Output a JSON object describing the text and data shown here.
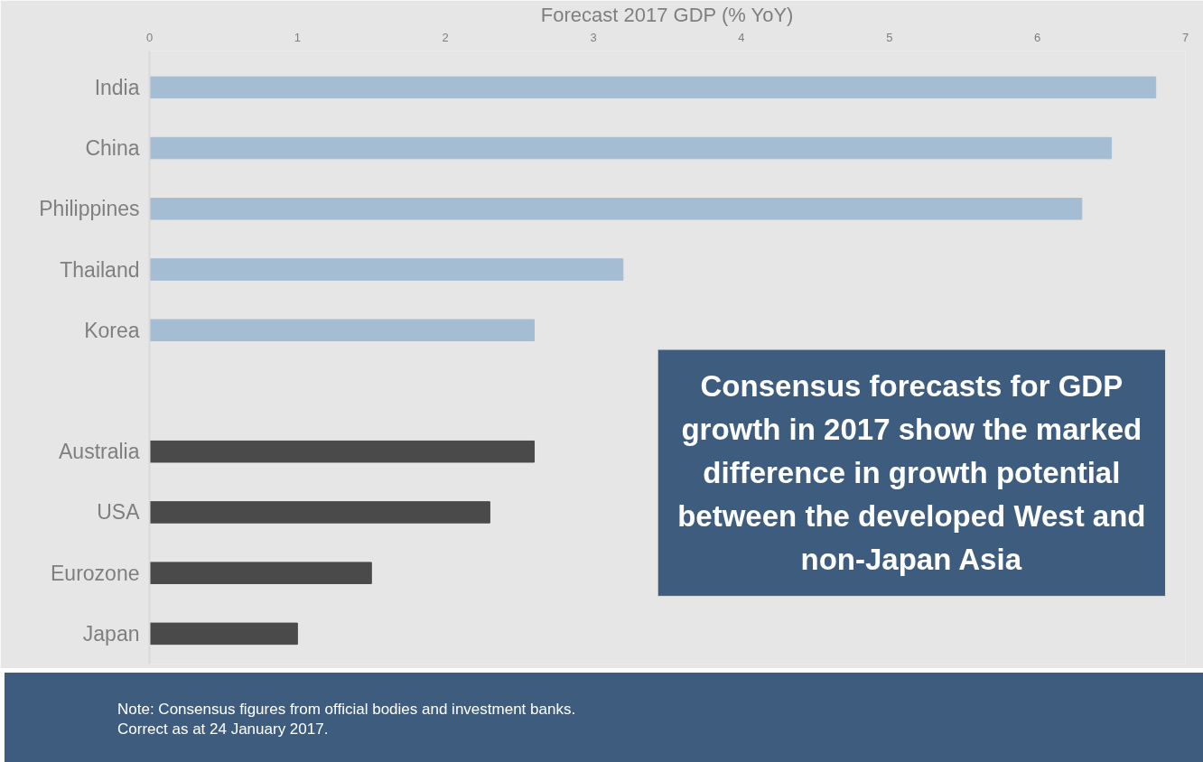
{
  "chart_data": {
    "type": "bar",
    "orientation": "horizontal",
    "xlabel": "Forecast 2017 GDP (% YoY)",
    "categories": [
      "India",
      "China",
      "Philippines",
      "Thailand",
      "Korea",
      null,
      "Australia",
      "USA",
      "Eurozone",
      "Japan"
    ],
    "values": [
      6.8,
      6.5,
      6.3,
      3.2,
      2.6,
      null,
      2.6,
      2.3,
      1.5,
      1.0
    ],
    "colors": [
      "#a5bdd3",
      "#a5bdd3",
      "#a5bdd3",
      "#a5bdd3",
      "#a5bdd3",
      null,
      "#4a4a4a",
      "#4a4a4a",
      "#4a4a4a",
      "#4a4a4a"
    ],
    "xlim": [
      0,
      7
    ],
    "xticks": [
      0,
      1,
      2,
      3,
      4,
      5,
      6,
      7
    ],
    "annotations": [
      "Consensus forecasts for GDP growth in 2017 show the marked difference in growth potential between the developed West and non-Japan Asia",
      "Note: Consensus figures from official bodies and investment banks.",
      "Correct as at 24 January 2017."
    ]
  }
}
